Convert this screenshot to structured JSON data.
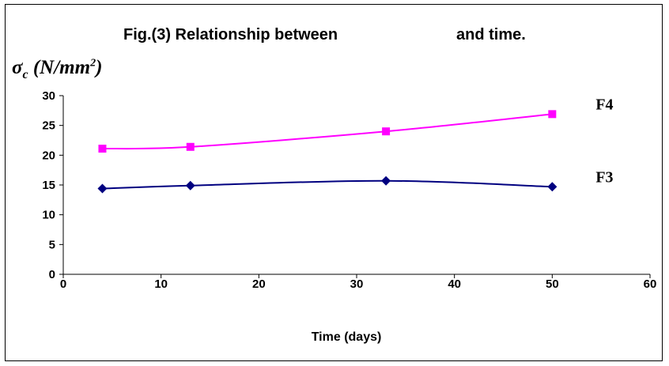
{
  "chart_data": {
    "type": "line",
    "title_part1": "Fig.(3) Relationship between",
    "title_part2": "and time.",
    "ylabel_symbol": "σ",
    "ylabel_sub": "c",
    "ylabel_unit_pre": " (N/mm",
    "ylabel_unit_sup": "2",
    "ylabel_unit_post": ")",
    "xlabel": "Time (days)",
    "xlim": [
      0,
      60
    ],
    "ylim": [
      0,
      30
    ],
    "xticks": [
      0,
      10,
      20,
      30,
      40,
      50,
      60
    ],
    "yticks": [
      0,
      5,
      10,
      15,
      20,
      25,
      30
    ],
    "grid": false,
    "series": [
      {
        "name": "F4",
        "color": "#ff00ff",
        "marker": "square",
        "x": [
          4,
          13,
          33,
          50
        ],
        "y": [
          21.1,
          21.4,
          24,
          26.9
        ]
      },
      {
        "name": "F3",
        "color": "#000080",
        "marker": "diamond",
        "x": [
          4,
          13,
          33,
          50
        ],
        "y": [
          14.4,
          14.9,
          15.7,
          14.7
        ]
      }
    ]
  }
}
